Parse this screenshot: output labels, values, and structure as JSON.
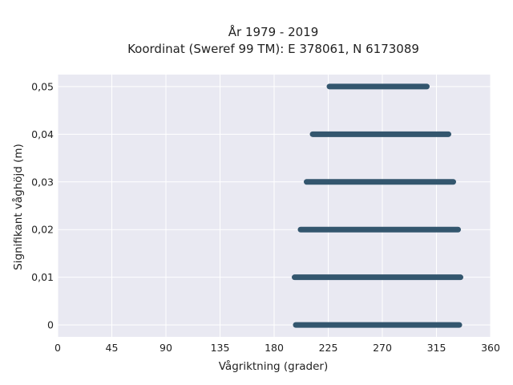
{
  "chart_data": {
    "type": "scatter",
    "title": "År 1979 - 2019",
    "subtitle": "Koordinat (Sweref 99 TM): E 378061, N 6173089",
    "xlabel": "Vågriktning (grader)",
    "ylabel": "Signifikant våghöjd (m)",
    "xlim": [
      0,
      360
    ],
    "ylim": [
      -0.0025,
      0.0525
    ],
    "x_ticks": [
      0,
      45,
      90,
      135,
      180,
      225,
      270,
      315,
      360
    ],
    "x_tick_labels": [
      "0",
      "45",
      "90",
      "135",
      "180",
      "225",
      "270",
      "315",
      "360"
    ],
    "y_ticks": [
      0,
      0.01,
      0.02,
      0.03,
      0.04,
      0.05
    ],
    "y_tick_labels": [
      "0",
      "0,01",
      "0,02",
      "0,03",
      "0,04",
      "0,05"
    ],
    "grid": true,
    "background": "#e9e9f2",
    "marker_color": "#33566e",
    "point_bands": [
      {
        "y": 0.05,
        "x_min": 226,
        "x_max": 307
      },
      {
        "y": 0.04,
        "x_min": 212,
        "x_max": 325
      },
      {
        "y": 0.03,
        "x_min": 207,
        "x_max": 329
      },
      {
        "y": 0.02,
        "x_min": 202,
        "x_max": 333
      },
      {
        "y": 0.01,
        "x_min": 197,
        "x_max": 335
      },
      {
        "y": 0.0,
        "x_min": 198,
        "x_max": 334
      }
    ]
  }
}
